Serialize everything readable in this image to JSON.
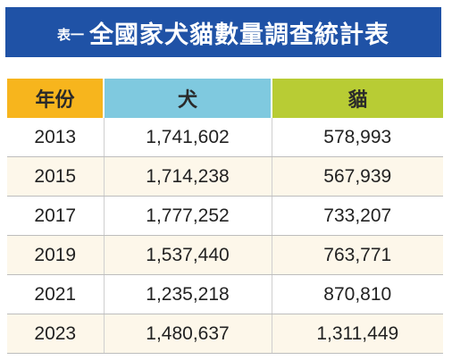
{
  "title": {
    "prefix": "表一",
    "text": "全國家犬貓數量調查統計表"
  },
  "table": {
    "headers": [
      "年份",
      "犬",
      "貓"
    ],
    "header_colors": [
      "#f7b51d",
      "#7fc9df",
      "#b8cc34"
    ],
    "rows": [
      [
        "2013",
        "1,741,602",
        "578,993"
      ],
      [
        "2015",
        "1,714,238",
        "567,939"
      ],
      [
        "2017",
        "1,777,252",
        "733,207"
      ],
      [
        "2019",
        "1,537,440",
        "763,771"
      ],
      [
        "2021",
        "1,235,218",
        "870,810"
      ],
      [
        "2023",
        "1,480,637",
        "1,311,449"
      ]
    ]
  },
  "colors": {
    "title_bg": "#1f52a6",
    "row_alt_bg": "#fdf7ea"
  }
}
